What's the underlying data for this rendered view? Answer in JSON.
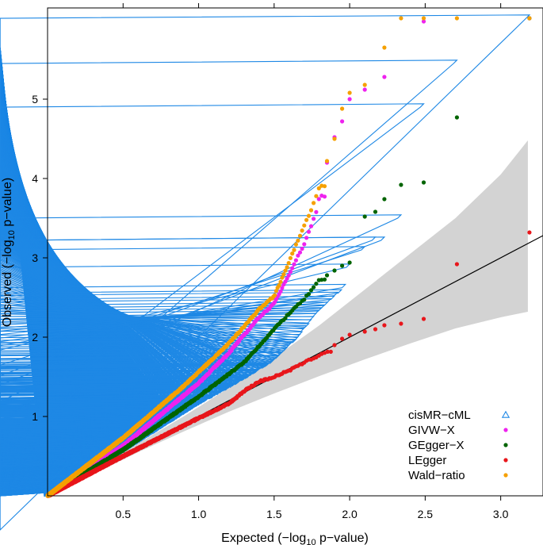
{
  "chart_data": {
    "type": "scatter",
    "title": "",
    "xlabel": {
      "pre": "Expected (−log",
      "sub": "10",
      "post": " p−value)"
    },
    "ylabel": {
      "pre": "Observed (−log",
      "sub": "10",
      "post": " p−value)"
    },
    "xlim": [
      0,
      3.28
    ],
    "ylim": [
      0,
      6.15
    ],
    "xticks": [
      0.5,
      1.0,
      1.5,
      2.0,
      2.5,
      3.0
    ],
    "xtick_labels": [
      "0.5",
      "1.0",
      "1.5",
      "2.0",
      "2.5",
      "3.0"
    ],
    "yticks": [
      1,
      2,
      3,
      4,
      5
    ],
    "ytick_labels": [
      "1",
      "2",
      "3",
      "4",
      "5"
    ],
    "n_points": 1500,
    "reference_line": {
      "from": [
        0,
        0
      ],
      "to": [
        3.28,
        3.28
      ]
    },
    "confidence_band": {
      "x": [
        0.0,
        0.3,
        0.6,
        0.9,
        1.2,
        1.5,
        1.8,
        2.1,
        2.4,
        2.7,
        3.0,
        3.18
      ],
      "lower": [
        0.0,
        0.27,
        0.55,
        0.81,
        1.06,
        1.29,
        1.51,
        1.72,
        1.92,
        2.11,
        2.25,
        2.32
      ],
      "upper": [
        0.0,
        0.33,
        0.66,
        1.0,
        1.36,
        1.74,
        2.15,
        2.6,
        3.05,
        3.5,
        4.05,
        4.48
      ]
    },
    "legend_position": "bottom-right",
    "series": [
      {
        "name": "cisMR−cML",
        "color": "#1e88e5",
        "marker": "triangle",
        "curve": [
          [
            0,
            0
          ],
          [
            0.5,
            0.53
          ],
          [
            1.0,
            1.13
          ],
          [
            1.3,
            1.45
          ],
          [
            1.5,
            1.68
          ],
          [
            1.65,
            1.95
          ],
          [
            1.8,
            2.3
          ],
          [
            1.95,
            2.57
          ],
          [
            2.0,
            2.7
          ]
        ],
        "tail": [
          [
            2.0,
            2.88
          ],
          [
            2.1,
            3.1
          ],
          [
            2.17,
            3.22
          ],
          [
            2.23,
            3.22
          ],
          [
            2.34,
            3.5
          ],
          [
            2.49,
            4.9
          ],
          [
            2.71,
            5.45
          ],
          [
            3.19,
            6.02
          ]
        ]
      },
      {
        "name": "GIVW−X",
        "color": "#ee22ee",
        "marker": "circle",
        "curve": [
          [
            0,
            0
          ],
          [
            0.5,
            0.63
          ],
          [
            1.0,
            1.42
          ],
          [
            1.2,
            1.8
          ],
          [
            1.4,
            2.25
          ],
          [
            1.5,
            2.42
          ],
          [
            1.6,
            2.8
          ],
          [
            1.7,
            3.18
          ],
          [
            1.78,
            3.58
          ],
          [
            1.8,
            3.78
          ]
        ],
        "tail": [
          [
            1.85,
            4.2
          ],
          [
            1.9,
            4.52
          ],
          [
            1.95,
            4.72
          ],
          [
            2.0,
            5.0
          ],
          [
            2.1,
            5.12
          ],
          [
            2.23,
            5.28
          ],
          [
            2.49,
            5.98
          ],
          [
            3.19,
            6.02
          ]
        ]
      },
      {
        "name": "GEgger−X",
        "color": "#006400",
        "marker": "circle",
        "curve": [
          [
            0,
            0
          ],
          [
            0.5,
            0.58
          ],
          [
            1.0,
            1.25
          ],
          [
            1.3,
            1.68
          ],
          [
            1.5,
            2.1
          ],
          [
            1.6,
            2.3
          ],
          [
            1.7,
            2.48
          ],
          [
            1.8,
            2.72
          ]
        ],
        "tail": [
          [
            1.85,
            2.78
          ],
          [
            1.9,
            2.84
          ],
          [
            1.95,
            2.9
          ],
          [
            2.0,
            2.94
          ],
          [
            2.1,
            3.52
          ],
          [
            2.17,
            3.58
          ],
          [
            2.23,
            3.74
          ],
          [
            2.34,
            3.92
          ],
          [
            2.49,
            3.95
          ],
          [
            2.71,
            4.77
          ],
          [
            3.19,
            6.02
          ]
        ]
      },
      {
        "name": "LEgger",
        "color": "#e8161b",
        "marker": "circle",
        "curve": [
          [
            0,
            0
          ],
          [
            0.5,
            0.5
          ],
          [
            1.0,
            0.98
          ],
          [
            1.2,
            1.16
          ],
          [
            1.3,
            1.32
          ],
          [
            1.4,
            1.44
          ],
          [
            1.5,
            1.5
          ],
          [
            1.6,
            1.58
          ],
          [
            1.7,
            1.68
          ],
          [
            1.85,
            1.82
          ]
        ],
        "tail": [
          [
            1.9,
            1.9
          ],
          [
            1.95,
            1.98
          ],
          [
            2.0,
            2.03
          ],
          [
            2.1,
            2.07
          ],
          [
            2.17,
            2.1
          ],
          [
            2.23,
            2.15
          ],
          [
            2.34,
            2.17
          ],
          [
            2.49,
            2.23
          ],
          [
            2.71,
            2.92
          ],
          [
            3.19,
            3.32
          ]
        ]
      },
      {
        "name": "Wald−ratio",
        "color": "#f5a000",
        "marker": "circle",
        "curve": [
          [
            0,
            0
          ],
          [
            0.5,
            0.73
          ],
          [
            0.9,
            1.38
          ],
          [
            1.2,
            1.92
          ],
          [
            1.4,
            2.35
          ],
          [
            1.5,
            2.52
          ],
          [
            1.6,
            2.95
          ],
          [
            1.7,
            3.42
          ],
          [
            1.75,
            3.62
          ],
          [
            1.8,
            3.9
          ]
        ],
        "tail": [
          [
            1.85,
            4.22
          ],
          [
            1.9,
            4.5
          ],
          [
            1.95,
            4.88
          ],
          [
            2.0,
            5.08
          ],
          [
            2.1,
            5.18
          ],
          [
            2.23,
            5.65
          ],
          [
            2.34,
            6.02
          ],
          [
            2.49,
            6.02
          ],
          [
            2.71,
            6.02
          ],
          [
            3.19,
            6.02
          ]
        ]
      }
    ]
  }
}
